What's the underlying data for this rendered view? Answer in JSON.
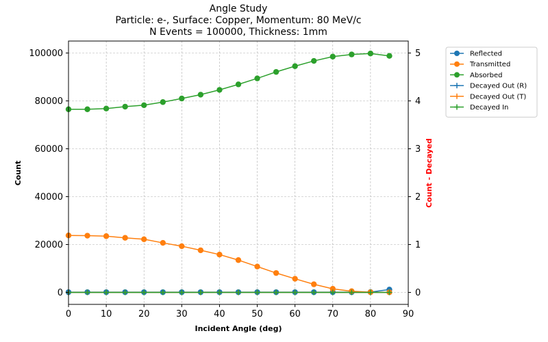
{
  "chart_data": {
    "type": "line",
    "title_lines": [
      "Angle Study",
      "Particle: e-, Surface: Copper, Momentum: 80 MeV/c",
      "N Events = 100000, Thickness: 1mm"
    ],
    "xlabel": "Incident Angle (deg)",
    "ylabel": "Count",
    "y2label": "Count - Decayed",
    "y2label_color": "#ff0000",
    "xlim": [
      0,
      90
    ],
    "ylim": [
      -5000,
      105000
    ],
    "y2lim": [
      -0.25,
      5.25
    ],
    "xticks": [
      0,
      10,
      20,
      30,
      40,
      50,
      60,
      70,
      80,
      90
    ],
    "yticks": [
      0,
      20000,
      40000,
      60000,
      80000,
      100000
    ],
    "y2ticks": [
      0,
      1,
      2,
      3,
      4,
      5
    ],
    "grid": true,
    "legend_position": "outside-right",
    "x": [
      0,
      5,
      10,
      15,
      20,
      25,
      30,
      35,
      40,
      45,
      50,
      55,
      60,
      65,
      70,
      75,
      80,
      85
    ],
    "series": [
      {
        "name": "Reflected",
        "color": "#1f77b4",
        "marker": "circle",
        "axis": "left",
        "values": [
          100,
          100,
          100,
          100,
          100,
          100,
          100,
          100,
          100,
          100,
          100,
          100,
          100,
          100,
          100,
          100,
          150,
          1200
        ]
      },
      {
        "name": "Transmitted",
        "color": "#ff7f0e",
        "marker": "circle",
        "axis": "left",
        "values": [
          23800,
          23700,
          23500,
          22800,
          22200,
          20700,
          19300,
          17600,
          15800,
          13500,
          10800,
          8100,
          5700,
          3400,
          1500,
          500,
          100,
          50
        ]
      },
      {
        "name": "Absorbed",
        "color": "#2ca02c",
        "marker": "circle",
        "axis": "left",
        "values": [
          76500,
          76500,
          76800,
          77600,
          78200,
          79500,
          81000,
          82600,
          84600,
          86900,
          89400,
          92100,
          94500,
          96700,
          98500,
          99400,
          99800,
          98800
        ]
      },
      {
        "name": "Decayed Out (R)",
        "color": "#1f77b4",
        "marker": "plus",
        "axis": "right",
        "values": [
          0,
          0,
          0,
          0,
          0,
          0,
          0,
          0,
          0,
          0,
          0,
          0,
          0,
          0,
          0,
          0,
          0,
          0
        ]
      },
      {
        "name": "Decayed Out (T)",
        "color": "#ff7f0e",
        "marker": "plus",
        "axis": "right",
        "values": [
          0,
          0,
          0,
          0,
          0,
          0,
          0,
          0,
          0,
          0,
          0,
          0,
          0,
          0,
          0,
          0,
          0,
          0
        ]
      },
      {
        "name": "Decayed In",
        "color": "#2ca02c",
        "marker": "plus",
        "axis": "right",
        "values": [
          0,
          0,
          0,
          0,
          0,
          0,
          0,
          0,
          0,
          0,
          0,
          0,
          0,
          0,
          0,
          0,
          0,
          0
        ]
      }
    ]
  }
}
